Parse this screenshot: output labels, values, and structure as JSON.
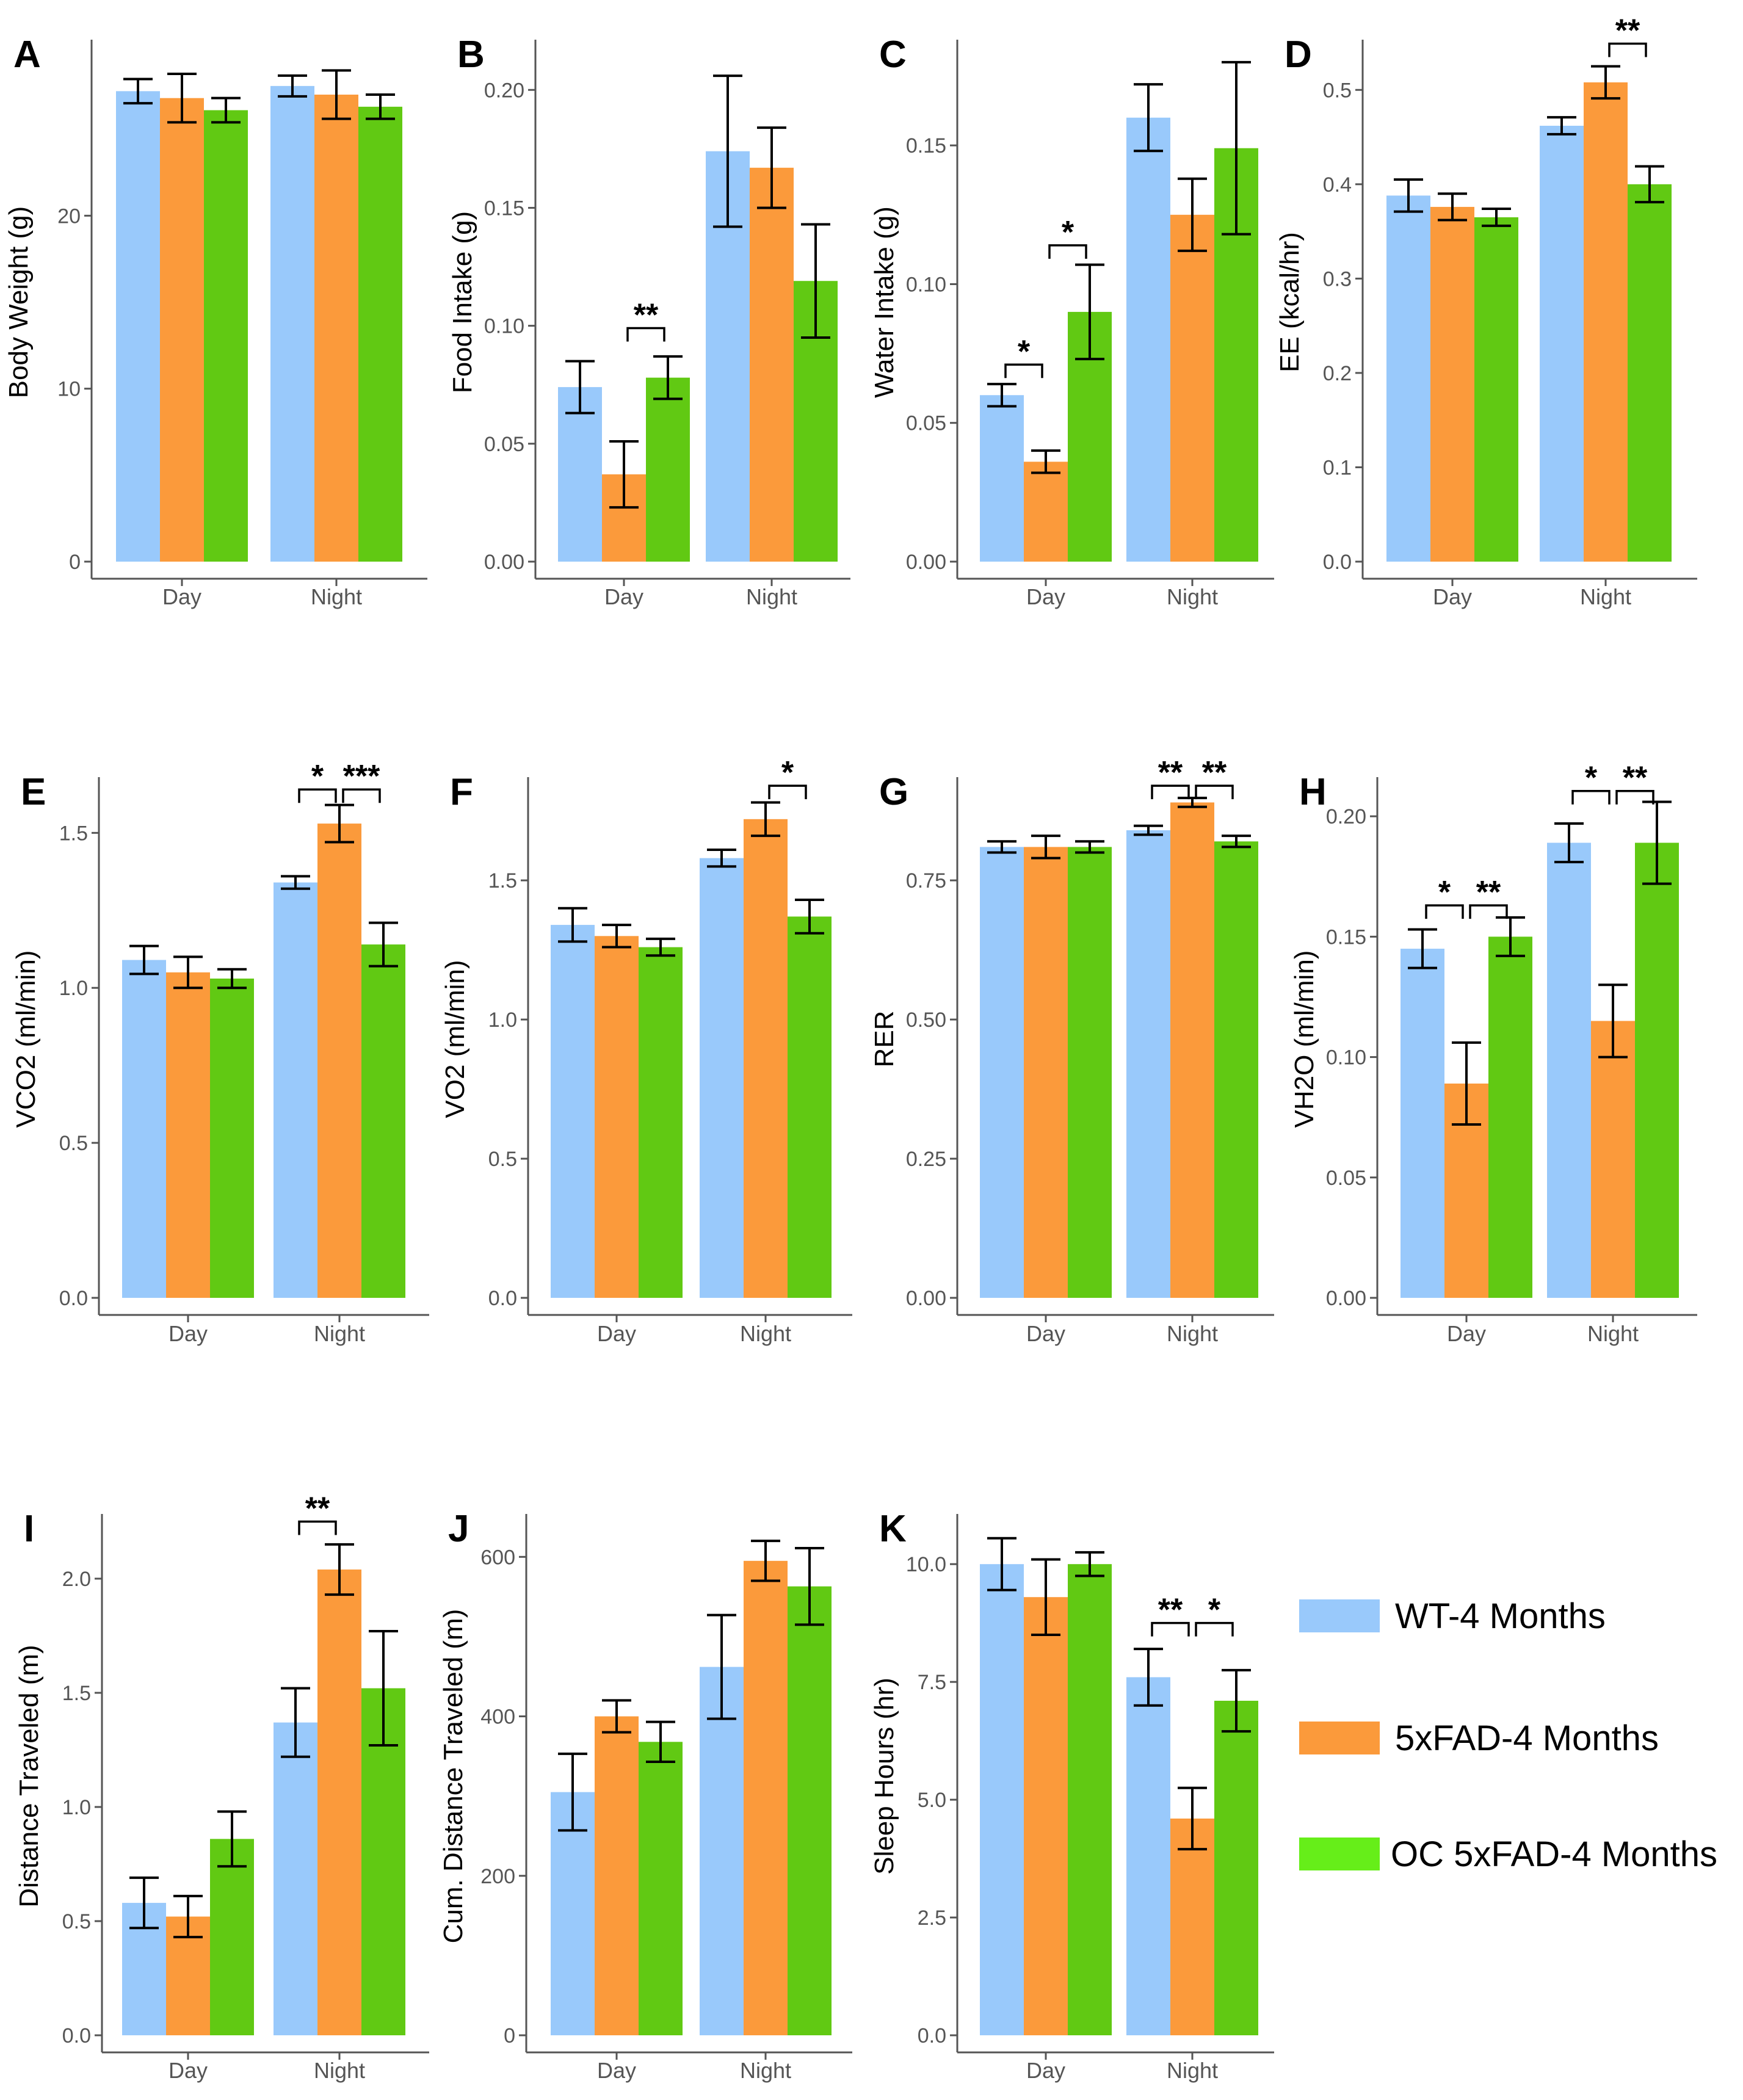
{
  "colors": {
    "wt": "#99c9fb",
    "fad": "#fb9a3b",
    "oc": "#61c913",
    "oc_legend": "#66ee19",
    "axis": "#555555"
  },
  "legend": {
    "entries": [
      {
        "key": "wt",
        "label": "WT-4 Months"
      },
      {
        "key": "fad",
        "label": "5xFAD-4 Months"
      },
      {
        "key": "oc",
        "label": "OC 5xFAD-4 Months"
      }
    ]
  },
  "chart_data": [
    {
      "letter": "A",
      "type": "bar",
      "ylabel": "Body Weight (g)",
      "categories": [
        "Day",
        "Night"
      ],
      "ylim": [
        0,
        30
      ],
      "ticks": [
        "0",
        "10",
        "20"
      ],
      "series": [
        {
          "name": "WT-4 Months",
          "values": [
            27.2,
            27.5
          ],
          "errors": [
            0.7,
            0.6
          ]
        },
        {
          "name": "5xFAD-4 Months",
          "values": [
            26.8,
            27.0
          ],
          "errors": [
            1.4,
            1.4
          ]
        },
        {
          "name": "OC 5xFAD-4 Months",
          "values": [
            26.1,
            26.3
          ],
          "errors": [
            0.7,
            0.7
          ]
        }
      ],
      "significance": []
    },
    {
      "letter": "B",
      "type": "bar",
      "ylabel": "Food Intake (g)",
      "categories": [
        "Day",
        "Night"
      ],
      "ylim": [
        0,
        0.22
      ],
      "ticks": [
        "0.00",
        "0.05",
        "0.10",
        "0.15",
        "0.20"
      ],
      "series": [
        {
          "name": "WT-4 Months",
          "values": [
            0.074,
            0.174
          ],
          "errors": [
            0.011,
            0.032
          ]
        },
        {
          "name": "5xFAD-4 Months",
          "values": [
            0.037,
            0.167
          ],
          "errors": [
            0.014,
            0.017
          ]
        },
        {
          "name": "OC 5xFAD-4 Months",
          "values": [
            0.078,
            0.119
          ],
          "errors": [
            0.009,
            0.024
          ]
        }
      ],
      "significance": [
        {
          "label": "**",
          "from": [
            0,
            1
          ],
          "to": [
            0,
            2
          ],
          "y": 0.099
        }
      ]
    },
    {
      "letter": "C",
      "type": "bar",
      "ylabel": "Water Intake (g)",
      "categories": [
        "Day",
        "Night"
      ],
      "ylim": [
        0,
        0.187
      ],
      "ticks": [
        "0.00",
        "0.05",
        "0.10",
        "0.15"
      ],
      "series": [
        {
          "name": "WT-4 Months",
          "values": [
            0.06,
            0.16
          ],
          "errors": [
            0.004,
            0.012
          ]
        },
        {
          "name": "5xFAD-4 Months",
          "values": [
            0.036,
            0.125
          ],
          "errors": [
            0.004,
            0.013
          ]
        },
        {
          "name": "OC 5xFAD-4 Months",
          "values": [
            0.09,
            0.149
          ],
          "errors": [
            0.017,
            0.031
          ]
        }
      ],
      "significance": [
        {
          "label": "*",
          "from": [
            0,
            0
          ],
          "to": [
            0,
            1
          ],
          "y": 0.071
        },
        {
          "label": "*",
          "from": [
            0,
            1
          ],
          "to": [
            0,
            2
          ],
          "y": 0.114
        }
      ]
    },
    {
      "letter": "D",
      "type": "bar",
      "ylabel": "EE (kcal/hr)",
      "categories": [
        "Day",
        "Night"
      ],
      "ylim": [
        0,
        0.55
      ],
      "ticks": [
        "0.0",
        "0.1",
        "0.2",
        "0.3",
        "0.4",
        "0.5"
      ],
      "series": [
        {
          "name": "WT-4 Months",
          "values": [
            0.388,
            0.462
          ],
          "errors": [
            0.017,
            0.009
          ]
        },
        {
          "name": "5xFAD-4 Months",
          "values": [
            0.376,
            0.508
          ],
          "errors": [
            0.014,
            0.017
          ]
        },
        {
          "name": "OC 5xFAD-4 Months",
          "values": [
            0.365,
            0.4
          ],
          "errors": [
            0.009,
            0.019
          ]
        }
      ],
      "significance": [
        {
          "label": "**",
          "from": [
            1,
            1
          ],
          "to": [
            1,
            2
          ],
          "y": 0.549
        }
      ]
    },
    {
      "letter": "E",
      "type": "bar",
      "ylabel": "VCO2 (ml/min)",
      "categories": [
        "Day",
        "Night"
      ],
      "ylim": [
        0,
        1.67
      ],
      "ticks": [
        "0.0",
        "0.5",
        "1.0",
        "1.5"
      ],
      "series": [
        {
          "name": "WT-4 Months",
          "values": [
            1.09,
            1.34
          ],
          "errors": [
            0.045,
            0.02
          ]
        },
        {
          "name": "5xFAD-4 Months",
          "values": [
            1.05,
            1.53
          ],
          "errors": [
            0.05,
            0.06
          ]
        },
        {
          "name": "OC 5xFAD-4 Months",
          "values": [
            1.03,
            1.14
          ],
          "errors": [
            0.03,
            0.07
          ]
        }
      ],
      "significance": [
        {
          "label": "*",
          "from": [
            1,
            0
          ],
          "to": [
            1,
            1
          ],
          "y": 1.64
        },
        {
          "label": "***",
          "from": [
            1,
            1
          ],
          "to": [
            1,
            2
          ],
          "y": 1.64
        }
      ]
    },
    {
      "letter": "F",
      "type": "bar",
      "ylabel": "VO2 (ml/min)",
      "categories": [
        "Day",
        "Night"
      ],
      "ylim": [
        0,
        1.86
      ],
      "ticks": [
        "0.0",
        "0.5",
        "1.0",
        "1.5"
      ],
      "series": [
        {
          "name": "WT-4 Months",
          "values": [
            1.34,
            1.58
          ],
          "errors": [
            0.06,
            0.03
          ]
        },
        {
          "name": "5xFAD-4 Months",
          "values": [
            1.3,
            1.72
          ],
          "errors": [
            0.04,
            0.06
          ]
        },
        {
          "name": "OC 5xFAD-4 Months",
          "values": [
            1.26,
            1.37
          ],
          "errors": [
            0.03,
            0.06
          ]
        }
      ],
      "significance": [
        {
          "label": "*",
          "from": [
            1,
            1
          ],
          "to": [
            1,
            2
          ],
          "y": 1.84
        }
      ]
    },
    {
      "letter": "G",
      "type": "bar",
      "ylabel": "RER",
      "categories": [
        "Day",
        "Night"
      ],
      "ylim": [
        0,
        0.93
      ],
      "ticks": [
        "0.00",
        "0.25",
        "0.50",
        "0.75"
      ],
      "series": [
        {
          "name": "WT-4 Months",
          "values": [
            0.81,
            0.84
          ],
          "errors": [
            0.01,
            0.008
          ]
        },
        {
          "name": "5xFAD-4 Months",
          "values": [
            0.81,
            0.89
          ],
          "errors": [
            0.02,
            0.008
          ]
        },
        {
          "name": "OC 5xFAD-4 Months",
          "values": [
            0.81,
            0.82
          ],
          "errors": [
            0.01,
            0.01
          ]
        }
      ],
      "significance": [
        {
          "label": "**",
          "from": [
            1,
            0
          ],
          "to": [
            1,
            1
          ],
          "y": 0.92
        },
        {
          "label": "**",
          "from": [
            1,
            1
          ],
          "to": [
            1,
            2
          ],
          "y": 0.92
        }
      ]
    },
    {
      "letter": "H",
      "type": "bar",
      "ylabel": "VH2O (ml/min)",
      "categories": [
        "Day",
        "Night"
      ],
      "ylim": [
        0,
        0.215
      ],
      "ticks": [
        "0.00",
        "0.05",
        "0.10",
        "0.15",
        "0.20"
      ],
      "series": [
        {
          "name": "WT-4 Months",
          "values": [
            0.145,
            0.189
          ],
          "errors": [
            0.008,
            0.008
          ]
        },
        {
          "name": "5xFAD-4 Months",
          "values": [
            0.089,
            0.115
          ],
          "errors": [
            0.017,
            0.015
          ]
        },
        {
          "name": "OC 5xFAD-4 Months",
          "values": [
            0.15,
            0.189
          ],
          "errors": [
            0.008,
            0.017
          ]
        }
      ],
      "significance": [
        {
          "label": "*",
          "from": [
            0,
            0
          ],
          "to": [
            0,
            1
          ],
          "y": 0.163
        },
        {
          "label": "**",
          "from": [
            0,
            1
          ],
          "to": [
            0,
            2
          ],
          "y": 0.163
        },
        {
          "label": "*",
          "from": [
            1,
            0
          ],
          "to": [
            1,
            1
          ],
          "y": 0.2105
        },
        {
          "label": "**",
          "from": [
            1,
            1
          ],
          "to": [
            1,
            2
          ],
          "y": 0.2105
        }
      ]
    },
    {
      "letter": "I",
      "type": "bar",
      "ylabel": "Distance Traveled (m)",
      "categories": [
        "Day",
        "Night"
      ],
      "ylim": [
        0,
        2.27
      ],
      "ticks": [
        "0.0",
        "0.5",
        "1.0",
        "1.5",
        "2.0"
      ],
      "series": [
        {
          "name": "WT-4 Months",
          "values": [
            0.58,
            1.37
          ],
          "errors": [
            0.11,
            0.15
          ]
        },
        {
          "name": "5xFAD-4 Months",
          "values": [
            0.52,
            2.04
          ],
          "errors": [
            0.09,
            0.11
          ]
        },
        {
          "name": "OC 5xFAD-4 Months",
          "values": [
            0.86,
            1.52
          ],
          "errors": [
            0.12,
            0.25
          ]
        }
      ],
      "significance": [
        {
          "label": "**",
          "from": [
            1,
            0
          ],
          "to": [
            1,
            1
          ],
          "y": 2.25
        }
      ]
    },
    {
      "letter": "J",
      "type": "bar",
      "ylabel": "Cum. Distance Traveled (m)",
      "categories": [
        "Day",
        "Night"
      ],
      "ylim": [
        0,
        650
      ],
      "ticks": [
        "0",
        "200",
        "400",
        "600"
      ],
      "series": [
        {
          "name": "WT-4 Months",
          "values": [
            305,
            462
          ],
          "errors": [
            48,
            65
          ]
        },
        {
          "name": "5xFAD-4 Months",
          "values": [
            400,
            595
          ],
          "errors": [
            20,
            25
          ]
        },
        {
          "name": "OC 5xFAD-4 Months",
          "values": [
            368,
            563
          ],
          "errors": [
            25,
            48
          ]
        }
      ],
      "significance": []
    },
    {
      "letter": "K",
      "type": "bar",
      "ylabel": "Sleep Hours (hr)",
      "categories": [
        "Day",
        "Night"
      ],
      "ylim": [
        0,
        11.0
      ],
      "ticks": [
        "0.0",
        "2.5",
        "5.0",
        "7.5",
        "10.0"
      ],
      "series": [
        {
          "name": "WT-4 Months",
          "values": [
            10.0,
            7.6
          ],
          "errors": [
            0.55,
            0.6
          ]
        },
        {
          "name": "5xFAD-4 Months",
          "values": [
            9.3,
            4.6
          ],
          "errors": [
            0.8,
            0.65
          ]
        },
        {
          "name": "OC 5xFAD-4 Months",
          "values": [
            10.0,
            7.1
          ],
          "errors": [
            0.25,
            0.65
          ]
        }
      ],
      "significance": [
        {
          "label": "**",
          "from": [
            1,
            0
          ],
          "to": [
            1,
            1
          ],
          "y": 8.75
        },
        {
          "label": "*",
          "from": [
            1,
            1
          ],
          "to": [
            1,
            2
          ],
          "y": 8.75
        }
      ]
    }
  ]
}
